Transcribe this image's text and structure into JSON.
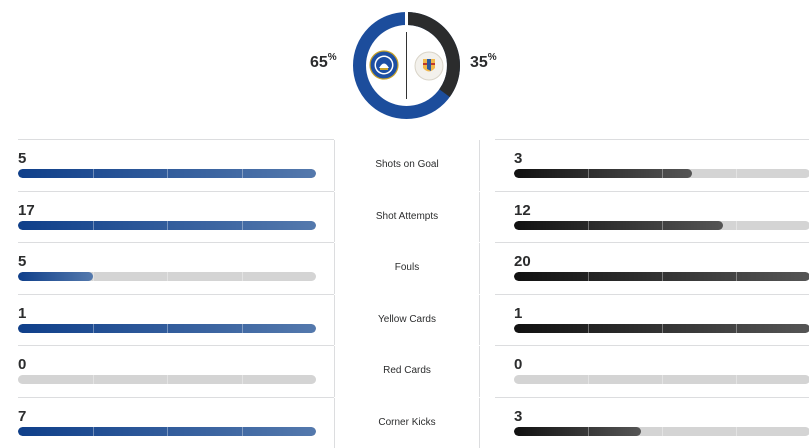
{
  "possession": {
    "home_pct": "65",
    "away_pct": "35",
    "home_fraction": 0.65,
    "pct_symbol": "%",
    "home_color": "#1c4d9c",
    "away_color": "#2b2c2d",
    "home_logo_icon": "chelsea-crest-icon",
    "away_logo_icon": "away-club-crest-icon"
  },
  "stats": [
    {
      "label": "Shots on Goal",
      "home": "5",
      "away": "3",
      "home_fraction": 1.0,
      "away_fraction": 0.6
    },
    {
      "label": "Shot Attempts",
      "home": "17",
      "away": "12",
      "home_fraction": 1.0,
      "away_fraction": 0.706
    },
    {
      "label": "Fouls",
      "home": "5",
      "away": "20",
      "home_fraction": 0.25,
      "away_fraction": 1.0
    },
    {
      "label": "Yellow Cards",
      "home": "1",
      "away": "1",
      "home_fraction": 1.0,
      "away_fraction": 1.0
    },
    {
      "label": "Red Cards",
      "home": "0",
      "away": "0",
      "home_fraction": 0.0,
      "away_fraction": 0.0
    },
    {
      "label": "Corner Kicks",
      "home": "7",
      "away": "3",
      "home_fraction": 1.0,
      "away_fraction": 0.429
    }
  ]
}
